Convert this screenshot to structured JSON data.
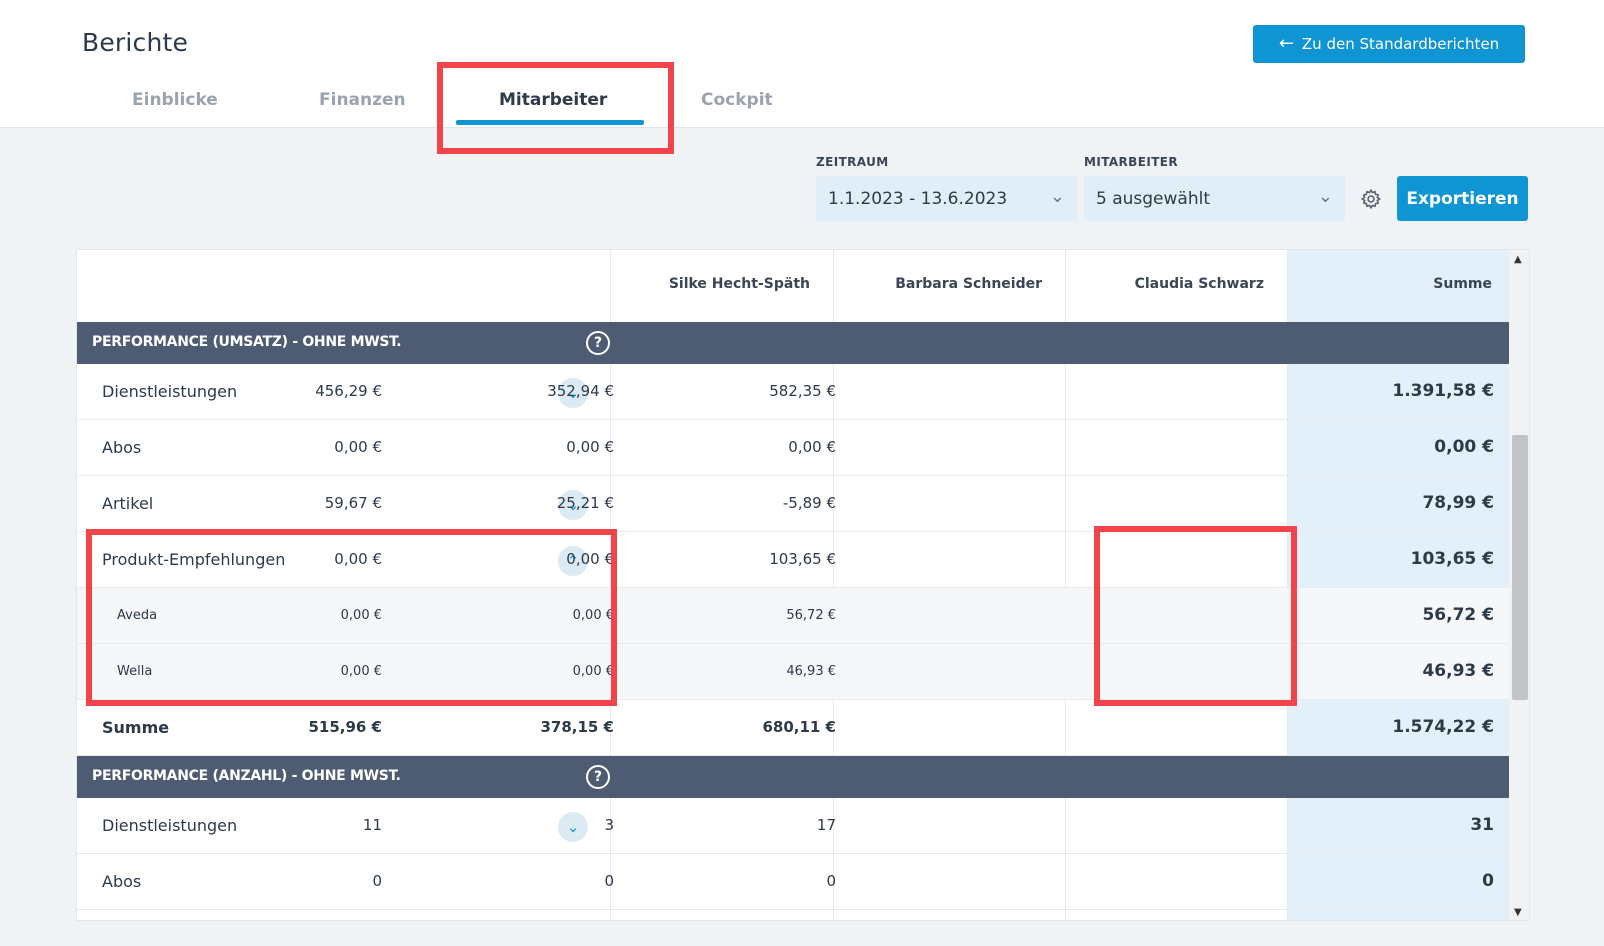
{
  "header": {
    "title": "Berichte",
    "back_button": "Zu den Standardberichten",
    "tabs": [
      {
        "label": "Einblicke"
      },
      {
        "label": "Finanzen"
      },
      {
        "label": "Mitarbeiter"
      },
      {
        "label": "Cockpit"
      }
    ],
    "active_tab": "Mitarbeiter"
  },
  "filters": {
    "zeitraum_label": "ZEITRAUM",
    "zeitraum_value": "1.1.2023 - 13.6.2023",
    "mitarbeiter_label": "MITARBEITER",
    "mitarbeiter_value": "5 ausgewählt",
    "settings_icon": "gear-icon",
    "export_button": "Exportieren"
  },
  "table": {
    "columns": [
      "Silke Hecht-Späth",
      "Barbara Schneider",
      "Claudia Schwarz",
      "Summe"
    ],
    "section1": {
      "title": "PERFORMANCE (UMSATZ) - OHNE MWST.",
      "help": "?",
      "rows": [
        {
          "label": "Dienstleistungen",
          "values": [
            "456,29 €",
            "352,94 €",
            "582,35 €",
            "1.391,58 €"
          ]
        },
        {
          "label": "Abos",
          "values": [
            "0,00 €",
            "0,00 €",
            "0,00 €",
            "0,00 €"
          ]
        },
        {
          "label": "Artikel",
          "values": [
            "59,67 €",
            "25,21 €",
            "-5,89 €",
            "78,99 €"
          ]
        },
        {
          "label": "Produkt-Empfehlungen",
          "values": [
            "0,00 €",
            "0,00 €",
            "103,65 €",
            "103,65 €"
          ]
        },
        {
          "label": "Aveda",
          "values": [
            "0,00 €",
            "0,00 €",
            "56,72 €",
            "56,72 €"
          ]
        },
        {
          "label": "Wella",
          "values": [
            "0,00 €",
            "0,00 €",
            "46,93 €",
            "46,93 €"
          ]
        },
        {
          "label": "Summe",
          "values": [
            "515,96 €",
            "378,15 €",
            "680,11 €",
            "1.574,22 €"
          ]
        }
      ]
    },
    "section2": {
      "title": "PERFORMANCE (ANZAHL) - OHNE MWST.",
      "help": "?",
      "rows": [
        {
          "label": "Dienstleistungen",
          "values": [
            "11",
            "3",
            "17",
            "31"
          ]
        },
        {
          "label": "Abos",
          "values": [
            "0",
            "0",
            "0",
            "0"
          ]
        }
      ]
    }
  },
  "colors": {
    "accent": "#0f95d3",
    "section_header": "#4e5c73",
    "highlight": "#f2444a",
    "sum_column": "#e4f0f9"
  }
}
